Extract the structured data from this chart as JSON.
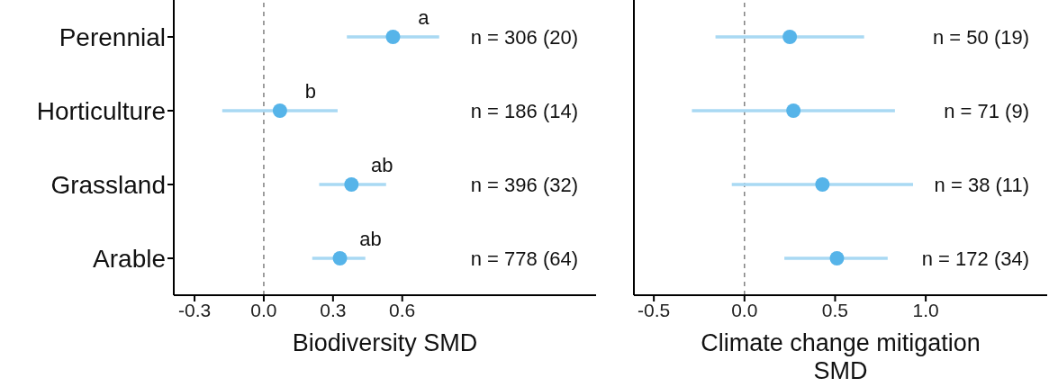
{
  "chart_data": [
    {
      "type": "scatter",
      "orientation": "horizontal",
      "xlabel": "Biodiversity SMD",
      "categories": [
        "Perennial",
        "Horticulture",
        "Grassland",
        "Arable"
      ],
      "series": [
        {
          "color": "#56b4e9",
          "values": [
            0.56,
            0.07,
            0.38,
            0.33
          ],
          "errors": [
            [
              0.36,
              0.76
            ],
            [
              -0.18,
              0.32
            ],
            [
              0.24,
              0.53
            ],
            [
              0.21,
              0.44
            ]
          ]
        }
      ],
      "xlim": [
        -0.39,
        1.44
      ],
      "xticks": [
        {
          "value": -0.3,
          "label": "-0.3"
        },
        {
          "value": 0,
          "label": "0.0"
        },
        {
          "value": 0.3,
          "label": "0.3"
        },
        {
          "value": 0.6,
          "label": "0.6"
        }
      ],
      "ref_lines": [
        {
          "axis": "x",
          "value": 0,
          "color": "#808080",
          "line_style": "dashed"
        }
      ],
      "annotations": [
        "a",
        "b",
        "ab",
        "ab",
        "n = 306 (20)",
        "n = 186 (14)",
        "n = 396 (32)",
        "n = 778 (64)"
      ],
      "grid": false,
      "legend": false,
      "marker": "circle"
    },
    {
      "type": "scatter",
      "orientation": "horizontal",
      "xlabel": "Climate change mitigation SMD",
      "categories": [
        null,
        null,
        null,
        null
      ],
      "series": [
        {
          "color": "#56b4e9",
          "values": [
            0.25,
            0.27,
            0.43,
            0.51
          ],
          "errors": [
            [
              -0.16,
              0.66
            ],
            [
              -0.29,
              0.83
            ],
            [
              -0.07,
              0.93
            ],
            [
              0.22,
              0.79
            ]
          ]
        }
      ],
      "xlim": [
        -0.61,
        1.67
      ],
      "xticks": [
        {
          "value": -0.5,
          "label": "-0.5"
        },
        {
          "value": 0,
          "label": "0.0"
        },
        {
          "value": 0.5,
          "label": "0.5"
        },
        {
          "value": 1,
          "label": "1.0"
        }
      ],
      "ref_lines": [
        {
          "axis": "x",
          "value": 0,
          "color": "#808080",
          "line_style": "dashed"
        }
      ],
      "annotations": [
        "n = 50 (19)",
        "n = 71 (9)",
        "n = 38 (11)",
        "n = 172 (34)"
      ],
      "tick_labels": "x",
      "grid": false,
      "legend": false,
      "marker": "circle"
    }
  ]
}
